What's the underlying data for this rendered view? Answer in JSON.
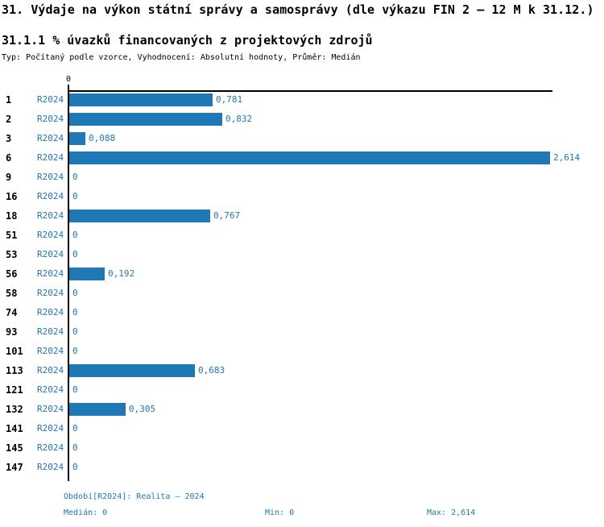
{
  "header": {
    "title": "31. Výdaje na výkon státní správy a samosprávy (dle výkazu FIN 2 – 12 M k 31.12.)",
    "subtitle": "31.1.1 % úvazků financovaných z projektových zdrojů",
    "meta": "Typ: Počítaný podle vzorce, Vyhodnocení: Absolutní hodnoty, Průměr: Medián"
  },
  "chart_data": {
    "type": "bar",
    "orientation": "horizontal",
    "title": "31.1.1 % úvazků financovaných z projektových zdrojů",
    "categories": [
      "1",
      "2",
      "3",
      "6",
      "9",
      "16",
      "18",
      "51",
      "53",
      "56",
      "58",
      "74",
      "93",
      "101",
      "113",
      "121",
      "132",
      "141",
      "145",
      "147"
    ],
    "series": [
      {
        "name": "R2024",
        "values": [
          0.781,
          0.832,
          0.088,
          2.614,
          0,
          0,
          0.767,
          0,
          0,
          0.192,
          0,
          0,
          0,
          0,
          0.683,
          0,
          0.305,
          0,
          0,
          0
        ],
        "value_labels": [
          "0,781",
          "0,832",
          "0,088",
          "2,614",
          "0",
          "0",
          "0,767",
          "0",
          "0",
          "0,192",
          "0",
          "0",
          "0",
          "0",
          "0,683",
          "0",
          "0,305",
          "0",
          "0",
          "0"
        ]
      }
    ],
    "xlim": [
      0,
      2.614
    ],
    "x_tick_labels": [
      "0"
    ],
    "grid": false,
    "legend_position": "none",
    "bar_color": "#1f77b4",
    "value_label_color": "#1f77b4"
  },
  "footer": {
    "period": "Období[R2024]: Realita – 2024",
    "median": "Medián: 0",
    "min": "Min: 0",
    "max": "Max: 2,614"
  },
  "theme": {
    "accent": "#1f77b4",
    "axis": "#000000",
    "background": "#ffffff"
  }
}
